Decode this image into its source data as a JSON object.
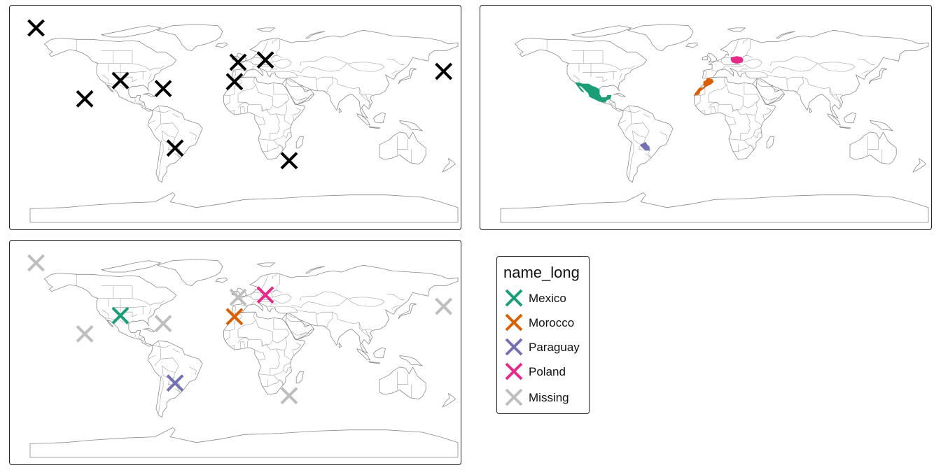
{
  "panels": [
    {
      "name": "world-map-points",
      "mode": "points-black"
    },
    {
      "name": "world-map-countries",
      "mode": "countries-filled"
    },
    {
      "name": "world-map-points-colored",
      "mode": "points-colored"
    }
  ],
  "points": [
    {
      "lon": -175,
      "lat": 80,
      "country": null
    },
    {
      "lon": -134,
      "lat": 18,
      "country": null
    },
    {
      "lon": -104,
      "lat": 34,
      "country": "Mexico"
    },
    {
      "lon": -68,
      "lat": 27,
      "country": null
    },
    {
      "lon": -58,
      "lat": -25,
      "country": "Paraguay"
    },
    {
      "lon": -8,
      "lat": 33,
      "country": "Morocco"
    },
    {
      "lon": -5,
      "lat": 50,
      "country": null
    },
    {
      "lon": 18,
      "lat": 52,
      "country": "Poland"
    },
    {
      "lon": 38,
      "lat": -36,
      "country": null
    },
    {
      "lon": 168,
      "lat": 42,
      "country": null
    }
  ],
  "legend": {
    "title": "name_long",
    "items": [
      {
        "label": "Mexico",
        "color": "#1b9e77"
      },
      {
        "label": "Morocco",
        "color": "#d95f02"
      },
      {
        "label": "Paraguay",
        "color": "#7570b3"
      },
      {
        "label": "Poland",
        "color": "#e7298a"
      },
      {
        "label": "Missing",
        "color": "#bebebe"
      }
    ]
  },
  "colors": {
    "point_default": "#000000",
    "Mexico": "#1b9e77",
    "Morocco": "#d95f02",
    "Paraguay": "#7570b3",
    "Poland": "#e7298a",
    "Missing": "#bebebe"
  }
}
